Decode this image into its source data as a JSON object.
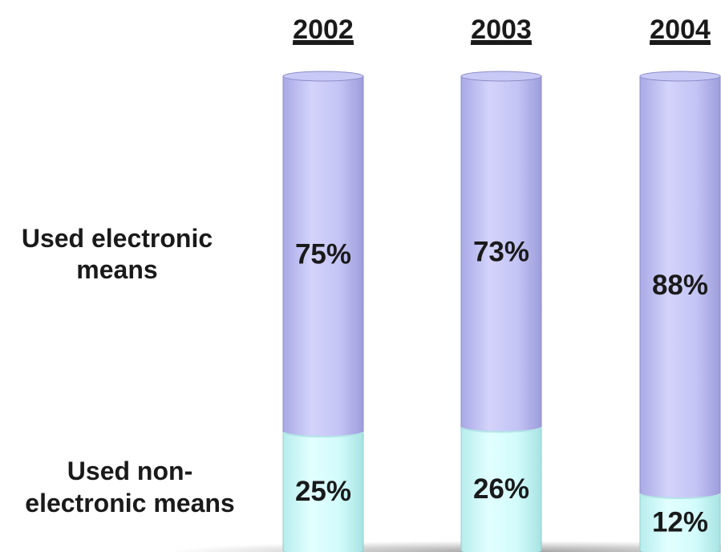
{
  "chart_data": {
    "type": "bar",
    "stacked": true,
    "normalized": true,
    "categories": [
      "2002",
      "2003",
      "2004"
    ],
    "series": [
      {
        "name": "Used electronic means",
        "values": [
          75,
          73,
          88
        ],
        "labels": [
          "75%",
          "73%",
          "88%"
        ],
        "color": "#c4c4f7"
      },
      {
        "name": "Used non-electronic means",
        "values": [
          25,
          26,
          12
        ],
        "labels": [
          "25%",
          "26%",
          "12%"
        ],
        "color": "#d2fbfb"
      }
    ],
    "row_labels": {
      "electronic": [
        "Used electronic",
        "means"
      ],
      "non_electronic": [
        "Used non-",
        "electronic means"
      ]
    },
    "unit": "%",
    "ylim": [
      0,
      100
    ],
    "legend": "none",
    "grid": false
  }
}
